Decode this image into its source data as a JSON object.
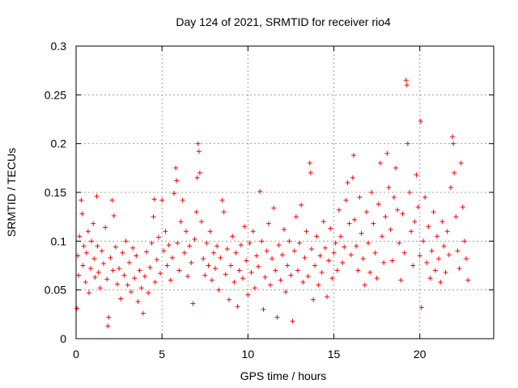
{
  "chart_data": {
    "type": "scatter",
    "title": "Day 124 of 2021, SRMTID for receiver rio4",
    "xlabel": "GPS time / hours",
    "ylabel": "SRMTID / TECUs",
    "xlim": [
      0,
      24.3
    ],
    "ylim": [
      0,
      0.3
    ],
    "xticks": [
      0,
      5,
      10,
      15,
      20
    ],
    "xtick_labels": [
      "0",
      "5",
      "10",
      "15",
      "20"
    ],
    "yticks": [
      0,
      0.05,
      0.1,
      0.15,
      0.2,
      0.25,
      0.3
    ],
    "ytick_labels": [
      "0",
      "0.05",
      "0.1",
      "0.15",
      "0.2",
      "0.25",
      "0.3"
    ],
    "grid": true,
    "marker": "+",
    "marker_color": "#ff0000",
    "series": [
      {
        "name": "SRMTID",
        "points": [
          [
            0.05,
            0.031
          ],
          [
            0.1,
            0.085
          ],
          [
            0.15,
            0.065
          ],
          [
            0.2,
            0.105
          ],
          [
            0.3,
            0.142
          ],
          [
            0.35,
            0.128
          ],
          [
            0.4,
            0.075
          ],
          [
            0.45,
            0.095
          ],
          [
            0.55,
            0.058
          ],
          [
            0.6,
            0.088
          ],
          [
            0.7,
            0.11
          ],
          [
            0.75,
            0.047
          ],
          [
            0.85,
            0.072
          ],
          [
            0.9,
            0.1
          ],
          [
            1.0,
            0.118
          ],
          [
            1.05,
            0.082
          ],
          [
            1.1,
            0.063
          ],
          [
            1.2,
            0.146
          ],
          [
            1.25,
            0.095
          ],
          [
            1.3,
            0.068
          ],
          [
            1.4,
            0.052
          ],
          [
            1.5,
            0.09
          ],
          [
            1.6,
            0.077
          ],
          [
            1.7,
            0.114
          ],
          [
            1.8,
            0.061
          ],
          [
            1.85,
            0.013
          ],
          [
            1.9,
            0.022
          ],
          [
            2.0,
            0.083
          ],
          [
            2.1,
            0.142
          ],
          [
            2.15,
            0.07
          ],
          [
            2.2,
            0.126
          ],
          [
            2.3,
            0.094
          ],
          [
            2.4,
            0.056
          ],
          [
            2.5,
            0.072
          ],
          [
            2.6,
            0.041
          ],
          [
            2.7,
            0.088
          ],
          [
            2.8,
            0.065
          ],
          [
            2.9,
            0.1
          ],
          [
            3.0,
            0.055
          ],
          [
            3.1,
            0.078
          ],
          [
            3.2,
            0.048
          ],
          [
            3.3,
            0.093
          ],
          [
            3.4,
            0.062
          ],
          [
            3.5,
            0.085
          ],
          [
            3.6,
            0.038
          ],
          [
            3.7,
            0.07
          ],
          [
            3.8,
            0.052
          ],
          [
            3.9,
            0.026
          ],
          [
            4.0,
            0.064
          ],
          [
            4.1,
            0.089
          ],
          [
            4.2,
            0.047
          ],
          [
            4.3,
            0.073
          ],
          [
            4.4,
            0.098
          ],
          [
            4.5,
            0.125
          ],
          [
            4.55,
            0.143
          ],
          [
            4.6,
            0.058
          ],
          [
            4.7,
            0.081
          ],
          [
            4.8,
            0.104
          ],
          [
            4.9,
            0.067
          ],
          [
            5.0,
            0.142
          ],
          [
            5.1,
            0.09
          ],
          [
            5.2,
            0.11
          ],
          [
            5.3,
            0.075
          ],
          [
            5.4,
            0.096
          ],
          [
            5.5,
            0.06
          ],
          [
            5.6,
            0.083
          ],
          [
            5.7,
            0.149
          ],
          [
            5.8,
            0.175
          ],
          [
            5.85,
            0.162
          ],
          [
            5.9,
            0.098
          ],
          [
            6.0,
            0.07
          ],
          [
            6.1,
            0.12
          ],
          [
            6.2,
            0.142
          ],
          [
            6.3,
            0.088
          ],
          [
            6.4,
            0.11
          ],
          [
            6.5,
            0.064
          ],
          [
            6.6,
            0.095
          ],
          [
            6.7,
            0.078
          ],
          [
            6.8,
            0.036
          ],
          [
            6.9,
            0.102
          ],
          [
            7.0,
            0.13
          ],
          [
            7.05,
            0.165
          ],
          [
            7.1,
            0.2
          ],
          [
            7.15,
            0.192
          ],
          [
            7.2,
            0.17
          ],
          [
            7.3,
            0.12
          ],
          [
            7.4,
            0.082
          ],
          [
            7.5,
            0.065
          ],
          [
            7.6,
            0.098
          ],
          [
            7.7,
            0.075
          ],
          [
            7.8,
            0.11
          ],
          [
            7.9,
            0.06
          ],
          [
            8.0,
            0.088
          ],
          [
            8.1,
            0.072
          ],
          [
            8.2,
            0.095
          ],
          [
            8.3,
            0.05
          ],
          [
            8.4,
            0.083
          ],
          [
            8.5,
            0.142
          ],
          [
            8.6,
            0.13
          ],
          [
            8.7,
            0.066
          ],
          [
            8.8,
            0.092
          ],
          [
            8.9,
            0.04
          ],
          [
            9.0,
            0.075
          ],
          [
            9.1,
            0.105
          ],
          [
            9.2,
            0.058
          ],
          [
            9.3,
            0.088
          ],
          [
            9.4,
            0.033
          ],
          [
            9.5,
            0.07
          ],
          [
            9.6,
            0.096
          ],
          [
            9.7,
            0.062
          ],
          [
            9.8,
            0.115
          ],
          [
            9.9,
            0.08
          ],
          [
            10.0,
            0.045
          ],
          [
            10.1,
            0.098
          ],
          [
            10.2,
            0.068
          ],
          [
            10.3,
            0.11
          ],
          [
            10.4,
            0.052
          ],
          [
            10.5,
            0.085
          ],
          [
            10.6,
            0.074
          ],
          [
            10.7,
            0.151
          ],
          [
            10.8,
            0.1
          ],
          [
            10.9,
            0.03
          ],
          [
            11.0,
            0.063
          ],
          [
            11.1,
            0.09
          ],
          [
            11.2,
            0.118
          ],
          [
            11.3,
            0.055
          ],
          [
            11.4,
            0.082
          ],
          [
            11.5,
            0.134
          ],
          [
            11.6,
            0.07
          ],
          [
            11.7,
            0.022
          ],
          [
            11.8,
            0.096
          ],
          [
            11.9,
            0.06
          ],
          [
            12.0,
            0.086
          ],
          [
            12.1,
            0.112
          ],
          [
            12.2,
            0.048
          ],
          [
            12.3,
            0.075
          ],
          [
            12.4,
            0.1
          ],
          [
            12.5,
            0.065
          ],
          [
            12.6,
            0.018
          ],
          [
            12.7,
            0.09
          ],
          [
            12.8,
            0.125
          ],
          [
            12.9,
            0.07
          ],
          [
            13.0,
            0.098
          ],
          [
            13.1,
            0.137
          ],
          [
            13.2,
            0.058
          ],
          [
            13.3,
            0.083
          ],
          [
            13.4,
            0.11
          ],
          [
            13.5,
            0.064
          ],
          [
            13.6,
            0.18
          ],
          [
            13.65,
            0.17
          ],
          [
            13.7,
            0.092
          ],
          [
            13.8,
            0.04
          ],
          [
            13.9,
            0.075
          ],
          [
            14.0,
            0.105
          ],
          [
            14.1,
            0.055
          ],
          [
            14.2,
            0.085
          ],
          [
            14.3,
            0.068
          ],
          [
            14.4,
            0.12
          ],
          [
            14.5,
            0.093
          ],
          [
            14.6,
            0.043
          ],
          [
            14.7,
            0.08
          ],
          [
            14.8,
            0.113
          ],
          [
            14.9,
            0.062
          ],
          [
            15.0,
            0.088
          ],
          [
            15.1,
            0.098
          ],
          [
            15.2,
            0.07
          ],
          [
            15.3,
            0.132
          ],
          [
            15.4,
            0.105
          ],
          [
            15.5,
            0.078
          ],
          [
            15.6,
            0.094
          ],
          [
            15.7,
            0.142
          ],
          [
            15.8,
            0.16
          ],
          [
            15.9,
            0.118
          ],
          [
            16.0,
            0.086
          ],
          [
            16.1,
            0.165
          ],
          [
            16.15,
            0.188
          ],
          [
            16.2,
            0.122
          ],
          [
            16.3,
            0.095
          ],
          [
            16.4,
            0.07
          ],
          [
            16.5,
            0.145
          ],
          [
            16.6,
            0.108
          ],
          [
            16.7,
            0.082
          ],
          [
            16.8,
            0.055
          ],
          [
            16.9,
            0.13
          ],
          [
            17.0,
            0.098
          ],
          [
            17.1,
            0.068
          ],
          [
            17.2,
            0.15
          ],
          [
            17.3,
            0.118
          ],
          [
            17.4,
            0.088
          ],
          [
            17.5,
            0.062
          ],
          [
            17.6,
            0.138
          ],
          [
            17.7,
            0.18
          ],
          [
            17.8,
            0.105
          ],
          [
            17.9,
            0.078
          ],
          [
            18.0,
            0.125
          ],
          [
            18.1,
            0.19
          ],
          [
            18.2,
            0.155
          ],
          [
            18.3,
            0.112
          ],
          [
            18.4,
            0.08
          ],
          [
            18.5,
            0.145
          ],
          [
            18.6,
            0.175
          ],
          [
            18.7,
            0.132
          ],
          [
            18.8,
            0.098
          ],
          [
            18.9,
            0.06
          ],
          [
            19.0,
            0.128
          ],
          [
            19.1,
            0.088
          ],
          [
            19.2,
            0.265
          ],
          [
            19.25,
            0.26
          ],
          [
            19.3,
            0.2
          ],
          [
            19.4,
            0.15
          ],
          [
            19.5,
            0.11
          ],
          [
            19.6,
            0.075
          ],
          [
            19.7,
            0.12
          ],
          [
            19.8,
            0.168
          ],
          [
            19.9,
            0.135
          ],
          [
            20.0,
            0.085
          ],
          [
            20.05,
            0.223
          ],
          [
            20.1,
            0.032
          ],
          [
            20.2,
            0.1
          ],
          [
            20.3,
            0.145
          ],
          [
            20.4,
            0.078
          ],
          [
            20.5,
            0.115
          ],
          [
            20.6,
            0.062
          ],
          [
            20.7,
            0.09
          ],
          [
            20.8,
            0.13
          ],
          [
            20.9,
            0.07
          ],
          [
            21.0,
            0.105
          ],
          [
            21.1,
            0.082
          ],
          [
            21.2,
            0.058
          ],
          [
            21.3,
            0.12
          ],
          [
            21.4,
            0.095
          ],
          [
            21.5,
            0.068
          ],
          [
            21.6,
            0.11
          ],
          [
            21.7,
            0.086
          ],
          [
            21.8,
            0.155
          ],
          [
            21.9,
            0.207
          ],
          [
            21.95,
            0.2
          ],
          [
            22.0,
            0.17
          ],
          [
            22.1,
            0.125
          ],
          [
            22.2,
            0.09
          ],
          [
            22.3,
            0.072
          ],
          [
            22.4,
            0.18
          ],
          [
            22.5,
            0.135
          ],
          [
            22.6,
            0.1
          ],
          [
            22.7,
            0.082
          ],
          [
            22.8,
            0.06
          ]
        ]
      }
    ]
  }
}
